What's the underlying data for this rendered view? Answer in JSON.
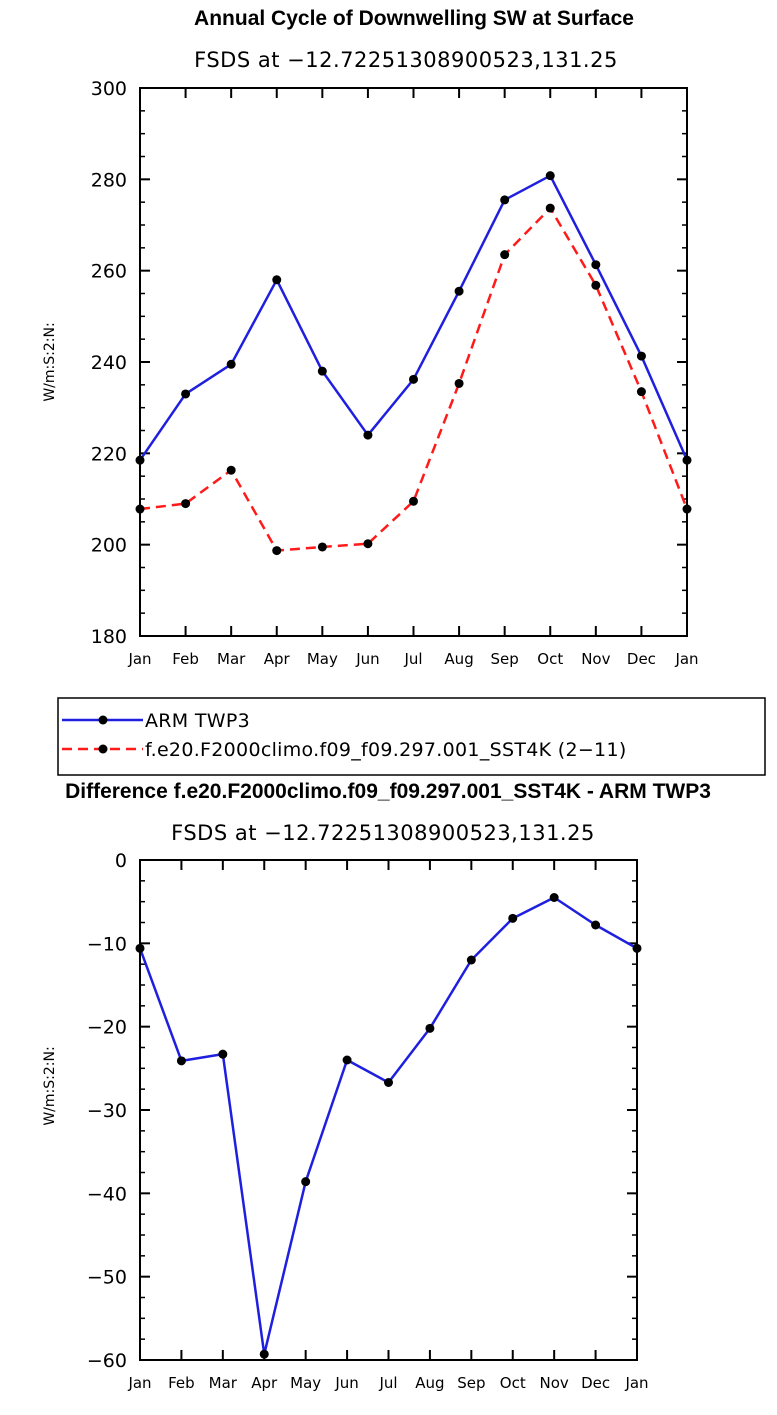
{
  "colors": {
    "obs": "#1f1fe0",
    "model": "#ff1a1a",
    "diff": "#1f1fe0",
    "marker": "#000000"
  },
  "chart_data": [
    {
      "type": "line",
      "title": "Annual Cycle of Downwelling SW at Surface",
      "subtitle": "FSDS at −12.72251308900523,131.25",
      "ylabel": "W/m:S:2:N:",
      "categories": [
        "Jan",
        "Feb",
        "Mar",
        "Apr",
        "May",
        "Jun",
        "Jul",
        "Aug",
        "Sep",
        "Oct",
        "Nov",
        "Dec",
        "Jan"
      ],
      "ylim": [
        180,
        300
      ],
      "yticks": [
        180,
        200,
        220,
        240,
        260,
        280,
        300
      ],
      "series": [
        {
          "name": "ARM TWP3",
          "style": "solid",
          "values": [
            218.5,
            233.0,
            239.5,
            258.0,
            238.0,
            224.0,
            236.2,
            255.5,
            275.5,
            280.8,
            261.3,
            241.3,
            218.5
          ]
        },
        {
          "name": "f.e20.F2000climo.f09_f09.297.001_SST4K (2−11)",
          "style": "dashed",
          "values": [
            207.8,
            209.0,
            216.3,
            198.7,
            199.5,
            200.2,
            209.5,
            235.3,
            263.5,
            273.7,
            256.8,
            233.5,
            207.8
          ]
        }
      ],
      "legend": [
        {
          "label": "ARM TWP3"
        },
        {
          "label": "f.e20.F2000climo.f09_f09.297.001_SST4K (2−11)"
        }
      ]
    },
    {
      "type": "line",
      "title": "Difference f.e20.F2000climo.f09_f09.297.001_SST4K - ARM TWP3",
      "subtitle": "FSDS at −12.72251308900523,131.25",
      "ylabel": "W/m:S:2:N:",
      "categories": [
        "Jan",
        "Feb",
        "Mar",
        "Apr",
        "May",
        "Jun",
        "Jul",
        "Aug",
        "Sep",
        "Oct",
        "Nov",
        "Dec",
        "Jan"
      ],
      "ylim": [
        -60,
        0
      ],
      "yticks": [
        -60,
        -50,
        -40,
        -30,
        -20,
        -10,
        0
      ],
      "ytick_labels": [
        "−60",
        "−50",
        "−40",
        "−30",
        "−20",
        "−10",
        "0"
      ],
      "series": [
        {
          "name": "Difference",
          "style": "solid",
          "values": [
            -10.6,
            -24.1,
            -23.3,
            -59.3,
            -38.6,
            -24.0,
            -26.7,
            -20.2,
            -12.0,
            -7.0,
            -4.5,
            -7.8,
            -10.6
          ]
        }
      ]
    }
  ]
}
